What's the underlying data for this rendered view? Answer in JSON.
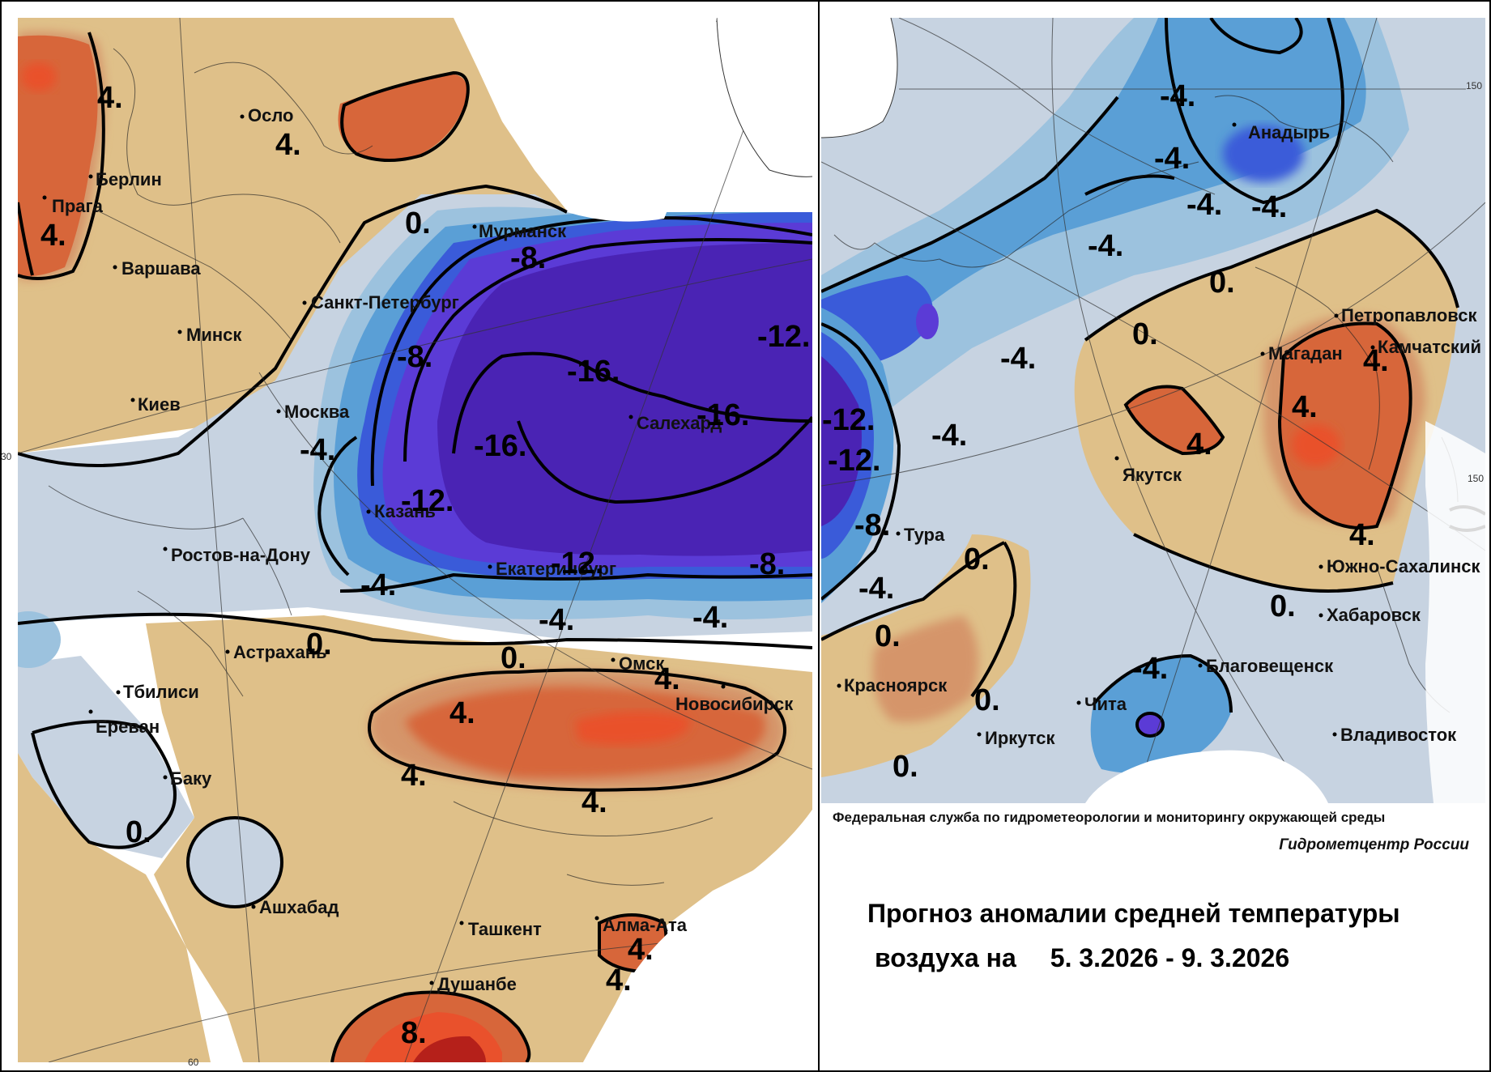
{
  "colors": {
    "anom_neg16": "#4a23b4",
    "anom_neg12": "#5b3bd6",
    "anom_neg8": "#3a5bd9",
    "anom_neg4": "#5a9fd6",
    "anom_neg2": "#9cc2de",
    "anom_0": "#c7d3e1",
    "anom_pos2": "#dfc089",
    "anom_pos4": "#d5956a",
    "anom_pos6": "#d7663a",
    "anom_pos8": "#e9512c",
    "anom_pos12": "#b5201a"
  },
  "cities": [
    {
      "name": "Осло"
    },
    {
      "name": "Берлин"
    },
    {
      "name": "Прага"
    },
    {
      "name": "Варшава"
    },
    {
      "name": "Санкт-Петербург"
    },
    {
      "name": "Минск"
    },
    {
      "name": "Мурманск"
    },
    {
      "name": "Киев"
    },
    {
      "name": "Москва"
    },
    {
      "name": "Салехард"
    },
    {
      "name": "Казань"
    },
    {
      "name": "Ростов-на-Дону"
    },
    {
      "name": "Екатеринбург"
    },
    {
      "name": "Астрахань"
    },
    {
      "name": "Омск"
    },
    {
      "name": "Тбилиси"
    },
    {
      "name": "Новосибирск"
    },
    {
      "name": "Ереван"
    },
    {
      "name": "Баку"
    },
    {
      "name": "Ашхабад"
    },
    {
      "name": "Ташкент"
    },
    {
      "name": "Алма-Ата"
    },
    {
      "name": "Душанбе"
    },
    {
      "name": "Анадырь"
    },
    {
      "name": "Петропавловск"
    },
    {
      "name": "Камчатский"
    },
    {
      "name": "Магадан"
    },
    {
      "name": "Якутск"
    },
    {
      "name": "Тура"
    },
    {
      "name": "Южно-Сахалинск"
    },
    {
      "name": "Хабаровск"
    },
    {
      "name": "Благовещенск"
    },
    {
      "name": "Красноярск"
    },
    {
      "name": "Чита"
    },
    {
      "name": "Иркутск"
    },
    {
      "name": "Владивосток"
    }
  ],
  "isolines": [
    {
      "value": "4."
    },
    {
      "value": "4."
    },
    {
      "value": "4."
    },
    {
      "value": "0."
    },
    {
      "value": "-8."
    },
    {
      "value": "-8."
    },
    {
      "value": "-12."
    },
    {
      "value": "-16."
    },
    {
      "value": "-16."
    },
    {
      "value": "-16."
    },
    {
      "value": "-4."
    },
    {
      "value": "-12."
    },
    {
      "value": "-12."
    },
    {
      "value": "-8."
    },
    {
      "value": "-4."
    },
    {
      "value": "-4."
    },
    {
      "value": "-4."
    },
    {
      "value": "0."
    },
    {
      "value": "0."
    },
    {
      "value": "4."
    },
    {
      "value": "4."
    },
    {
      "value": "4."
    },
    {
      "value": "4."
    },
    {
      "value": "0."
    },
    {
      "value": "4."
    },
    {
      "value": "4."
    },
    {
      "value": "8."
    },
    {
      "value": "-4."
    },
    {
      "value": "-4."
    },
    {
      "value": "-4."
    },
    {
      "value": "-4."
    },
    {
      "value": "-4."
    },
    {
      "value": "0."
    },
    {
      "value": "0."
    },
    {
      "value": "-12."
    },
    {
      "value": "-12."
    },
    {
      "value": "-4."
    },
    {
      "value": "-4."
    },
    {
      "value": "4."
    },
    {
      "value": "4."
    },
    {
      "value": "4."
    },
    {
      "value": "4."
    },
    {
      "value": "-8."
    },
    {
      "value": "0."
    },
    {
      "value": "-4."
    },
    {
      "value": "0."
    },
    {
      "value": "0."
    },
    {
      "value": "-4."
    },
    {
      "value": "0."
    },
    {
      "value": "0."
    }
  ],
  "grid_labels": [
    {
      "value": "30"
    },
    {
      "value": "60"
    },
    {
      "value": "150"
    },
    {
      "value": "150"
    }
  ],
  "info": {
    "agency": "Федеральная служба по гидрометеорологии и мониторингу окружающей среды",
    "center": "Гидрометцентр России",
    "title_line1": "Прогноз аномалии средней температуры",
    "title_line2": "воздуха на",
    "dates": "5. 3.2026 -  9. 3.2026"
  }
}
